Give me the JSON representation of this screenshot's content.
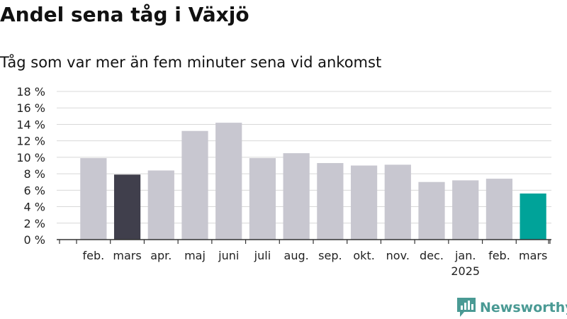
{
  "title": "Andel sena tåg i Växjö",
  "subtitle": "Tåg som var mer än fem minuter sena vid ankomst",
  "brand": "Newsworthy",
  "colors": {
    "bar_default": "#c8c7d0",
    "bar_first": "#403f4c",
    "bar_latest": "#00a399",
    "grid": "#d8d8d8",
    "axis": "#333333",
    "brand": "#4a9a94"
  },
  "chart_data": {
    "type": "bar",
    "categories": [
      "feb.",
      "mars",
      "apr.",
      "maj",
      "juni",
      "juli",
      "aug.",
      "sep.",
      "okt.",
      "nov.",
      "dec.",
      "jan.",
      "feb.",
      "mars"
    ],
    "year_labels": [
      {
        "index": 11,
        "label": "2025"
      }
    ],
    "values": [
      9.9,
      7.9,
      8.4,
      13.2,
      14.2,
      9.9,
      10.5,
      9.3,
      9.0,
      9.1,
      7.0,
      7.2,
      7.4,
      5.6
    ],
    "highlight": {
      "dark": [
        1
      ],
      "accent": [
        13
      ]
    },
    "yticks": [
      "0 %",
      "2 %",
      "4 %",
      "6 %",
      "8 %",
      "10 %",
      "12 %",
      "14 %",
      "16 %",
      "18 %"
    ],
    "ylim": [
      0,
      18
    ],
    "grid": true
  }
}
